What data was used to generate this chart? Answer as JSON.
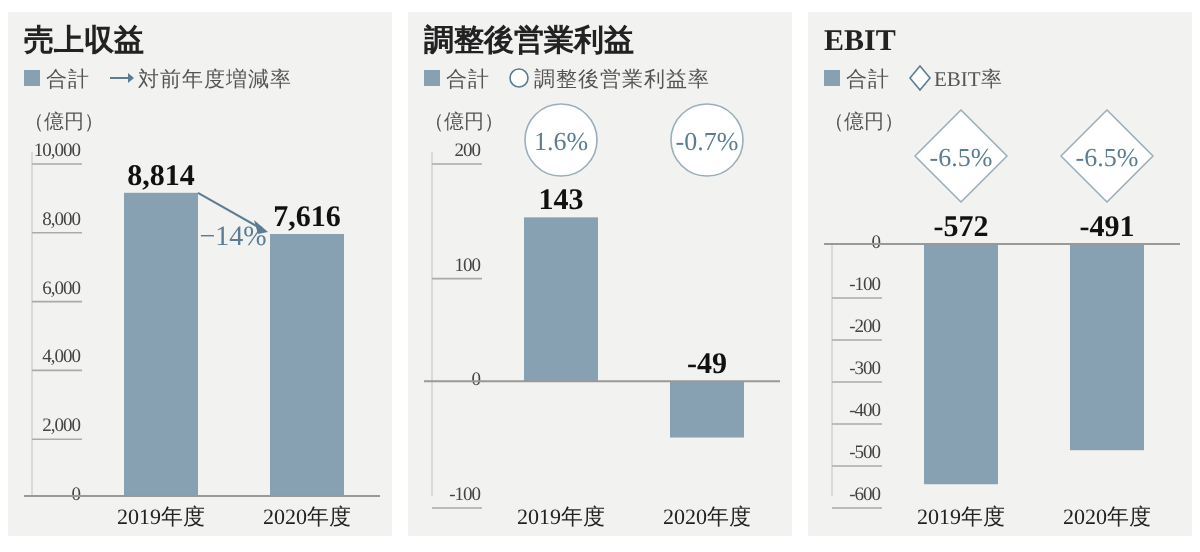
{
  "chart_data": [
    {
      "type": "bar",
      "title": "売上収益",
      "ylabel": "（億円）",
      "categories": [
        "2019年度",
        "2020年度"
      ],
      "ylim": [
        0,
        10000
      ],
      "yticks": [
        0,
        {
          "value": 2000,
          "label": "2,000"
        },
        {
          "value": 4000,
          "label": "4,000"
        },
        {
          "value": 6000,
          "label": "6,000"
        },
        {
          "value": 8000,
          "label": "8,000"
        },
        {
          "value": 10000,
          "label": "10,000"
        }
      ],
      "legend": "top left",
      "series": [
        {
          "name": "合計",
          "color": "#87a0b2",
          "values": [
            8814,
            7616
          ],
          "value_labels": [
            "8,814",
            "7,616"
          ]
        },
        {
          "name": "対前年度増減率",
          "type": "line",
          "marker": "none",
          "color": "#5b7d93",
          "values": [
            null,
            null
          ],
          "value_labels": [
            null,
            "−14%"
          ]
        }
      ]
    },
    {
      "type": "bar",
      "title": "調整後営業利益",
      "ylabel": "（億円）",
      "categories": [
        "2019年度",
        "2020年度"
      ],
      "ylim": [
        -100,
        200
      ],
      "yticks": [
        -100,
        0,
        100,
        200
      ],
      "legend": "top left",
      "series": [
        {
          "name": "合計",
          "color": "#87a0b2",
          "values": [
            143,
            -49
          ],
          "value_labels": [
            "143",
            "-49"
          ]
        },
        {
          "name": "調整後営業利益率",
          "type": "scatter",
          "marker": "circle",
          "color": "#5b7d93",
          "values": [
            null,
            null
          ],
          "value_labels": [
            "1.6%",
            "-0.7%"
          ]
        }
      ]
    },
    {
      "type": "bar",
      "title": "EBIT",
      "ylabel": "（億円）",
      "categories": [
        "2019年度",
        "2020年度"
      ],
      "ylim": [
        -600,
        0
      ],
      "yticks": [
        -600,
        -500,
        -400,
        -300,
        -200,
        -100,
        0
      ],
      "legend": "top left",
      "series": [
        {
          "name": "合計",
          "color": "#87a0b2",
          "values": [
            -572,
            -491
          ],
          "value_labels": [
            "-572",
            "-491"
          ]
        },
        {
          "name": "EBIT率",
          "type": "scatter",
          "marker": "diamond",
          "color": "#5b7d93",
          "values": [
            null,
            null
          ],
          "value_labels": [
            "-6.5%",
            "-6.5%"
          ]
        }
      ]
    }
  ]
}
